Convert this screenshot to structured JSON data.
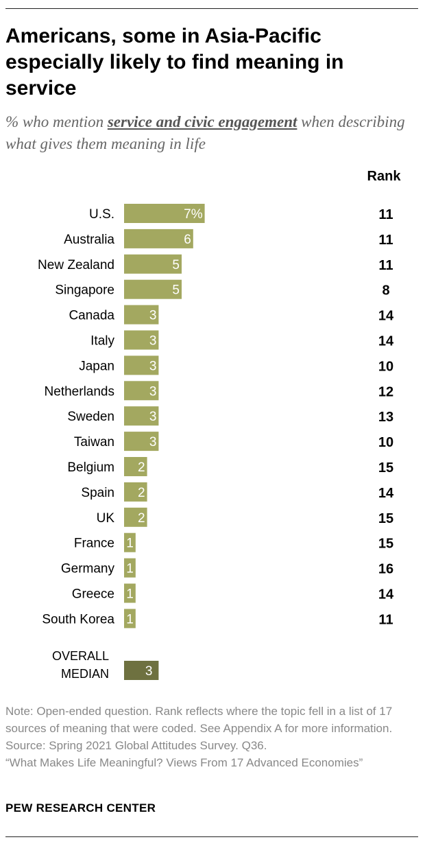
{
  "header": {
    "title": "Americans, some in Asia-Pacific especially likely to find meaning in service",
    "subtitle_pre": "% who mention ",
    "subtitle_em": "service and civic engagement",
    "subtitle_post": " when describing what gives them meaning in life",
    "rank_label": "Rank"
  },
  "chart_data": {
    "type": "bar",
    "orientation": "horizontal",
    "categories": [
      "U.S.",
      "Australia",
      "New Zealand",
      "Singapore",
      "Canada",
      "Italy",
      "Japan",
      "Netherlands",
      "Sweden",
      "Taiwan",
      "Belgium",
      "Spain",
      "UK",
      "France",
      "Germany",
      "Greece",
      "South Korea"
    ],
    "values": [
      7,
      6,
      5,
      5,
      3,
      3,
      3,
      3,
      3,
      3,
      2,
      2,
      2,
      1,
      1,
      1,
      1
    ],
    "value_labels": [
      "7%",
      "6",
      "5",
      "5",
      "3",
      "3",
      "3",
      "3",
      "3",
      "3",
      "2",
      "2",
      "2",
      "1",
      "1",
      "1",
      "1"
    ],
    "ranks": [
      11,
      11,
      11,
      8,
      14,
      14,
      10,
      12,
      13,
      10,
      15,
      14,
      15,
      15,
      16,
      14,
      11
    ],
    "median": {
      "label_lines": [
        "OVERALL",
        "MEDIAN"
      ],
      "value": 3,
      "value_label": "3"
    },
    "xlim": [
      0,
      7
    ],
    "colors": {
      "bar": "#a3a860",
      "median_bar": "#6e7140",
      "bar_label": "#ffffff"
    }
  },
  "footer": {
    "note": "Note: Open-ended question. Rank reflects where the topic fell in a list of 17 sources of meaning that were coded. See Appendix A for more information.",
    "source": "Source: Spring 2021 Global Attitudes Survey. Q36.",
    "report": "“What Makes Life Meaningful? Views From 17 Advanced Economies”",
    "brand": "PEW RESEARCH CENTER"
  }
}
